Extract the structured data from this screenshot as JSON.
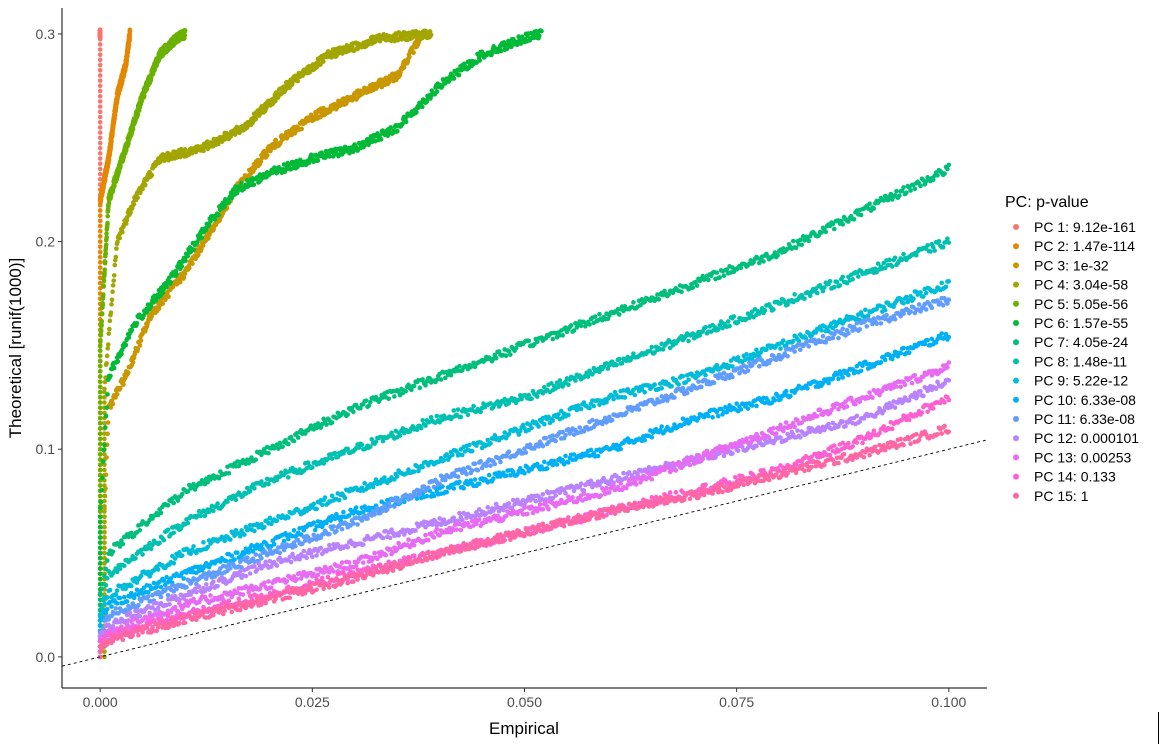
{
  "chart_data": {
    "type": "scatter",
    "title": "",
    "xlabel": "Empirical",
    "ylabel": "Theoretical [runif(1000)]",
    "xlim": [
      -0.0045,
      0.1045
    ],
    "ylim": [
      -0.015,
      0.3125
    ],
    "x_ticks": [
      0.0,
      0.025,
      0.05,
      0.075,
      0.1
    ],
    "x_tick_labels": [
      "0.000",
      "0.025",
      "0.050",
      "0.075",
      "0.100"
    ],
    "y_ticks": [
      0.0,
      0.1,
      0.2,
      0.3
    ],
    "y_tick_labels": [
      "0.0",
      "0.1",
      "0.2",
      "0.3"
    ],
    "grid": false,
    "reference_line": {
      "style": "dashed",
      "slope": 1,
      "intercept": 0
    },
    "legend": {
      "title": "PC: p-value",
      "position": "right"
    },
    "series": [
      {
        "name": "PC 1: 9.12e-161",
        "color": "#F8766D",
        "curve": [
          [
            0.0,
            0.0
          ],
          [
            0.0,
            0.3
          ]
        ]
      },
      {
        "name": "PC 2: 1.47e-114",
        "color": "#E58700",
        "curve": [
          [
            0.0,
            0.0
          ],
          [
            0.0,
            0.22
          ],
          [
            0.001,
            0.24
          ],
          [
            0.002,
            0.27
          ],
          [
            0.003,
            0.285
          ],
          [
            0.0035,
            0.3
          ]
        ]
      },
      {
        "name": "PC 3: 1e-32",
        "color": "#C99800",
        "curve": [
          [
            0.0,
            0.0
          ],
          [
            0.0005,
            0.07
          ],
          [
            0.001,
            0.12
          ],
          [
            0.003,
            0.135
          ],
          [
            0.006,
            0.165
          ],
          [
            0.01,
            0.185
          ],
          [
            0.013,
            0.205
          ],
          [
            0.016,
            0.225
          ],
          [
            0.02,
            0.245
          ],
          [
            0.025,
            0.26
          ],
          [
            0.03,
            0.27
          ],
          [
            0.035,
            0.28
          ],
          [
            0.038,
            0.3
          ]
        ]
      },
      {
        "name": "PC 4: 3.04e-58",
        "color": "#A3A500",
        "curve": [
          [
            0.0,
            0.0
          ],
          [
            0.0005,
            0.13
          ],
          [
            0.002,
            0.2
          ],
          [
            0.004,
            0.22
          ],
          [
            0.007,
            0.24
          ],
          [
            0.012,
            0.245
          ],
          [
            0.017,
            0.255
          ],
          [
            0.022,
            0.275
          ],
          [
            0.027,
            0.29
          ],
          [
            0.033,
            0.298
          ],
          [
            0.039,
            0.3
          ]
        ]
      },
      {
        "name": "PC 5: 5.05e-56",
        "color": "#6BB100",
        "curve": [
          [
            0.0,
            0.0
          ],
          [
            0.0,
            0.15
          ],
          [
            0.001,
            0.22
          ],
          [
            0.003,
            0.245
          ],
          [
            0.005,
            0.27
          ],
          [
            0.007,
            0.29
          ],
          [
            0.009,
            0.298
          ],
          [
            0.01,
            0.3
          ]
        ]
      },
      {
        "name": "PC 6: 1.57e-55",
        "color": "#00BA38",
        "curve": [
          [
            0.0,
            0.0
          ],
          [
            0.0,
            0.07
          ],
          [
            0.001,
            0.135
          ],
          [
            0.004,
            0.16
          ],
          [
            0.008,
            0.18
          ],
          [
            0.013,
            0.21
          ],
          [
            0.016,
            0.225
          ],
          [
            0.02,
            0.233
          ],
          [
            0.025,
            0.24
          ],
          [
            0.03,
            0.245
          ],
          [
            0.035,
            0.255
          ],
          [
            0.04,
            0.275
          ],
          [
            0.045,
            0.29
          ],
          [
            0.05,
            0.298
          ],
          [
            0.052,
            0.3
          ]
        ]
      },
      {
        "name": "PC 7: 4.05e-24",
        "color": "#00BF7D",
        "curve": [
          [
            0.0,
            0.0
          ],
          [
            0.0,
            0.03
          ],
          [
            0.001,
            0.05
          ],
          [
            0.01,
            0.08
          ],
          [
            0.02,
            0.1
          ],
          [
            0.03,
            0.12
          ],
          [
            0.04,
            0.135
          ],
          [
            0.05,
            0.15
          ],
          [
            0.06,
            0.165
          ],
          [
            0.07,
            0.18
          ],
          [
            0.08,
            0.195
          ],
          [
            0.09,
            0.215
          ],
          [
            0.1,
            0.235
          ]
        ]
      },
      {
        "name": "PC 8: 1.48e-11",
        "color": "#00C0AF",
        "curve": [
          [
            0.0,
            0.0
          ],
          [
            0.0,
            0.02
          ],
          [
            0.001,
            0.04
          ],
          [
            0.01,
            0.065
          ],
          [
            0.02,
            0.085
          ],
          [
            0.03,
            0.1
          ],
          [
            0.04,
            0.115
          ],
          [
            0.05,
            0.125
          ],
          [
            0.06,
            0.14
          ],
          [
            0.07,
            0.155
          ],
          [
            0.08,
            0.17
          ],
          [
            0.09,
            0.185
          ],
          [
            0.1,
            0.2
          ]
        ]
      },
      {
        "name": "PC 9: 5.22e-12",
        "color": "#00BCD8",
        "curve": [
          [
            0.0,
            0.0
          ],
          [
            0.0,
            0.02
          ],
          [
            0.001,
            0.03
          ],
          [
            0.01,
            0.05
          ],
          [
            0.02,
            0.065
          ],
          [
            0.03,
            0.08
          ],
          [
            0.04,
            0.095
          ],
          [
            0.05,
            0.11
          ],
          [
            0.06,
            0.125
          ],
          [
            0.07,
            0.135
          ],
          [
            0.08,
            0.15
          ],
          [
            0.09,
            0.165
          ],
          [
            0.1,
            0.18
          ]
        ]
      },
      {
        "name": "PC 10: 6.33e-08",
        "color": "#00B0F6",
        "curve": [
          [
            0.0,
            0.0
          ],
          [
            0.0,
            0.015
          ],
          [
            0.001,
            0.025
          ],
          [
            0.01,
            0.04
          ],
          [
            0.02,
            0.055
          ],
          [
            0.03,
            0.07
          ],
          [
            0.04,
            0.08
          ],
          [
            0.05,
            0.09
          ],
          [
            0.06,
            0.1
          ],
          [
            0.07,
            0.115
          ],
          [
            0.08,
            0.125
          ],
          [
            0.09,
            0.14
          ],
          [
            0.1,
            0.155
          ]
        ]
      },
      {
        "name": "PC 11: 6.33e-08",
        "color": "#619CFF",
        "curve": [
          [
            0.0,
            0.0
          ],
          [
            0.0,
            0.012
          ],
          [
            0.001,
            0.02
          ],
          [
            0.01,
            0.035
          ],
          [
            0.02,
            0.05
          ],
          [
            0.03,
            0.065
          ],
          [
            0.04,
            0.085
          ],
          [
            0.05,
            0.1
          ],
          [
            0.06,
            0.115
          ],
          [
            0.07,
            0.13
          ],
          [
            0.08,
            0.145
          ],
          [
            0.09,
            0.16
          ],
          [
            0.1,
            0.172
          ]
        ]
      },
      {
        "name": "PC 12: 0.000101",
        "color": "#B983FF",
        "curve": [
          [
            0.0,
            0.0
          ],
          [
            0.0,
            0.01
          ],
          [
            0.001,
            0.015
          ],
          [
            0.01,
            0.03
          ],
          [
            0.02,
            0.045
          ],
          [
            0.03,
            0.055
          ],
          [
            0.04,
            0.065
          ],
          [
            0.05,
            0.075
          ],
          [
            0.06,
            0.085
          ],
          [
            0.07,
            0.095
          ],
          [
            0.08,
            0.105
          ],
          [
            0.09,
            0.115
          ],
          [
            0.1,
            0.133
          ]
        ]
      },
      {
        "name": "PC 13: 0.00253",
        "color": "#E76BF3",
        "curve": [
          [
            0.0,
            0.0
          ],
          [
            0.0,
            0.008
          ],
          [
            0.001,
            0.012
          ],
          [
            0.01,
            0.025
          ],
          [
            0.02,
            0.035
          ],
          [
            0.03,
            0.045
          ],
          [
            0.04,
            0.06
          ],
          [
            0.05,
            0.07
          ],
          [
            0.06,
            0.08
          ],
          [
            0.07,
            0.095
          ],
          [
            0.08,
            0.11
          ],
          [
            0.09,
            0.125
          ],
          [
            0.1,
            0.14
          ]
        ]
      },
      {
        "name": "PC 14: 0.133",
        "color": "#FD61D1",
        "curve": [
          [
            0.0,
            0.0
          ],
          [
            0.0,
            0.006
          ],
          [
            0.001,
            0.01
          ],
          [
            0.01,
            0.02
          ],
          [
            0.02,
            0.03
          ],
          [
            0.03,
            0.04
          ],
          [
            0.04,
            0.05
          ],
          [
            0.05,
            0.06
          ],
          [
            0.06,
            0.07
          ],
          [
            0.07,
            0.08
          ],
          [
            0.08,
            0.09
          ],
          [
            0.09,
            0.105
          ],
          [
            0.1,
            0.125
          ]
        ]
      },
      {
        "name": "PC 15: 1",
        "color": "#FF67A4",
        "curve": [
          [
            0.0,
            0.0
          ],
          [
            0.0,
            0.005
          ],
          [
            0.001,
            0.008
          ],
          [
            0.01,
            0.018
          ],
          [
            0.02,
            0.028
          ],
          [
            0.03,
            0.038
          ],
          [
            0.04,
            0.05
          ],
          [
            0.05,
            0.06
          ],
          [
            0.06,
            0.07
          ],
          [
            0.07,
            0.078
          ],
          [
            0.08,
            0.088
          ],
          [
            0.09,
            0.098
          ],
          [
            0.1,
            0.11
          ]
        ]
      }
    ]
  }
}
